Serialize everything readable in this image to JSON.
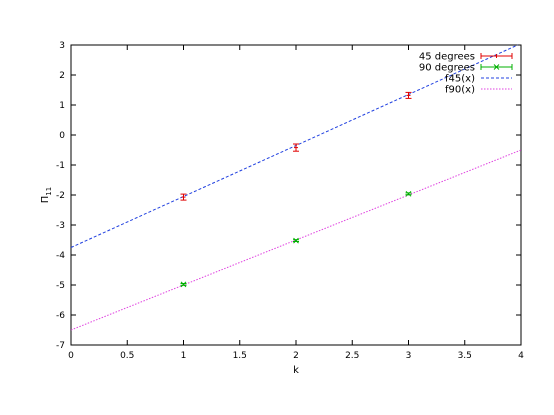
{
  "chart_data": {
    "type": "scatter",
    "xlabel": "k",
    "ylabel": "Π",
    "ylabel_sub": "11",
    "xlim": [
      0,
      4
    ],
    "ylim": [
      -7,
      3
    ],
    "xticks": [
      0,
      0.5,
      1,
      1.5,
      2,
      2.5,
      3,
      3.5,
      4
    ],
    "xtick_labels": [
      "0",
      "0.5",
      "1",
      "1.5",
      "2",
      "2.5",
      "3",
      "3.5",
      "4"
    ],
    "yticks": [
      -7,
      -6,
      -5,
      -4,
      -3,
      -2,
      -1,
      0,
      1,
      2,
      3
    ],
    "ytick_labels": [
      "-7",
      "-6",
      "-5",
      "-4",
      "-3",
      "-2",
      "-1",
      "0",
      "1",
      "2",
      "3"
    ],
    "grid": false,
    "legend_position": "top-right",
    "series": [
      {
        "name": "45 degrees",
        "kind": "errorbars",
        "color": "#e00000",
        "x": [
          1,
          2,
          3
        ],
        "y": [
          -2.07,
          -0.42,
          1.32
        ],
        "yerr": [
          0.1,
          0.12,
          0.1
        ]
      },
      {
        "name": "90 degrees",
        "kind": "errorbars",
        "color": "#00b000",
        "x": [
          1,
          2,
          3
        ],
        "y": [
          -4.98,
          -3.52,
          -1.96
        ],
        "yerr": [
          0.03,
          0.03,
          0.03
        ]
      },
      {
        "name": "f45(x)",
        "kind": "line",
        "color": "#2040e0",
        "dash": "dashed",
        "intercept": -3.75,
        "slope": 1.7
      },
      {
        "name": "f90(x)",
        "kind": "line",
        "color": "#e040e0",
        "dash": "dotted",
        "intercept": -6.5,
        "slope": 1.5
      }
    ]
  }
}
